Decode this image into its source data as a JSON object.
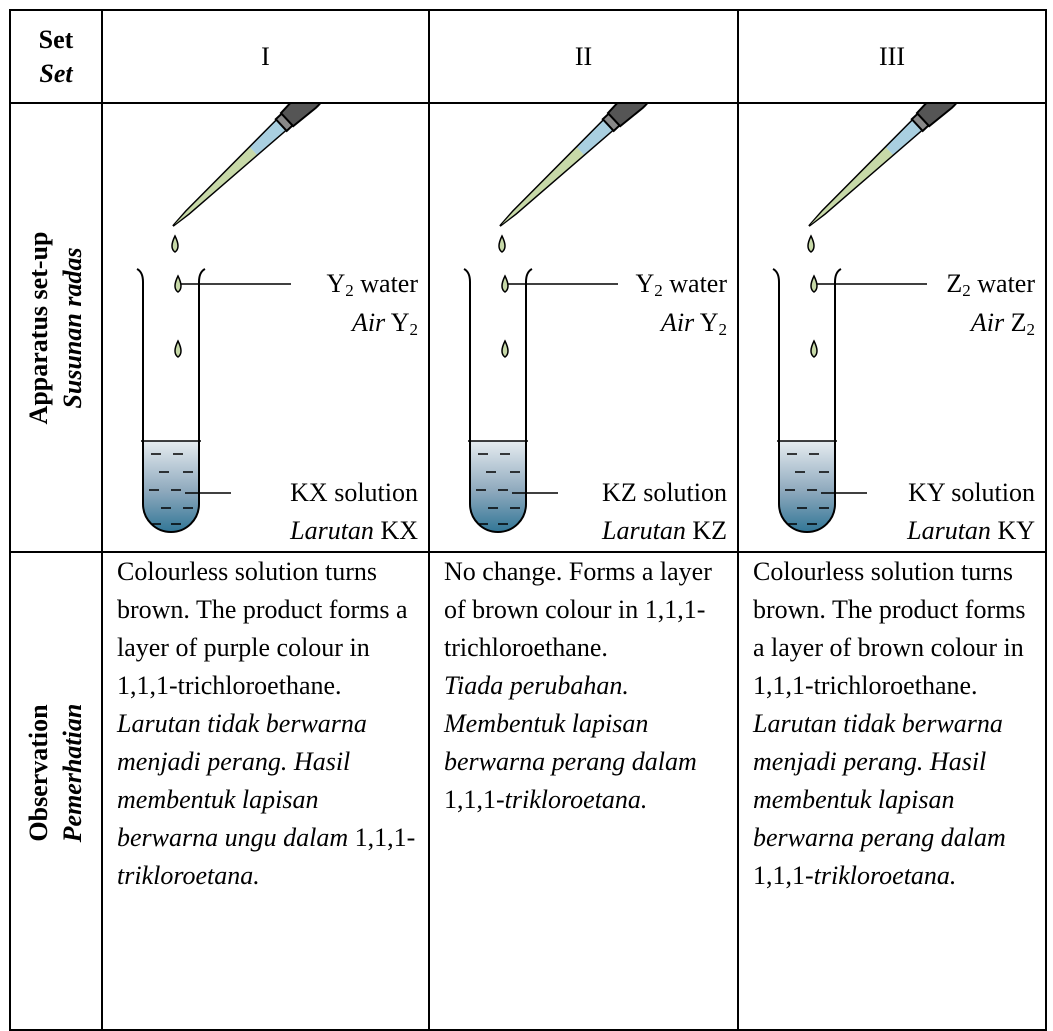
{
  "header": {
    "label": {
      "en": "Set",
      "ms": "Set"
    },
    "sets": [
      "I",
      "II",
      "III"
    ]
  },
  "apparatus": {
    "label": {
      "en": "Apparatus set-up",
      "ms": "Susunan radas"
    },
    "cells": [
      {
        "reagent": {
          "symbol": "Y",
          "subscript": "2",
          "en_suffix": "water",
          "ms_prefix": "Air"
        },
        "solution": {
          "en": "KX solution",
          "ms_prefix": "Larutan",
          "ms_symbol": "KX"
        }
      },
      {
        "reagent": {
          "symbol": "Y",
          "subscript": "2",
          "en_suffix": "water",
          "ms_prefix": "Air"
        },
        "solution": {
          "en": "KZ solution",
          "ms_prefix": "Larutan",
          "ms_symbol": "KZ"
        }
      },
      {
        "reagent": {
          "symbol": "Z",
          "subscript": "2",
          "en_suffix": "water",
          "ms_prefix": "Air"
        },
        "solution": {
          "en": "KY solution",
          "ms_prefix": "Larutan",
          "ms_symbol": "KY"
        }
      }
    ]
  },
  "observation": {
    "label": {
      "en": "Observation",
      "ms": "Pemerhatian"
    },
    "cells": [
      {
        "en": "Colourless solution turns brown. The product forms a layer of purple colour in 1,1,1-trichloroethane.",
        "ms": [
          {
            "text": "Larutan tidak berwarna menjadi perang. Hasil membentuk lapisan berwarna ungu dalam ",
            "italic": true
          },
          {
            "text": "1,1,1-",
            "italic": false
          },
          {
            "text": "trikloroetana.",
            "italic": true
          }
        ]
      },
      {
        "en": "No change. Forms a layer of brown colour in 1,1,1-trichloroethane.",
        "ms": [
          {
            "text": "Tiada perubahan. Membentuk lapisan berwarna perang dalam ",
            "italic": true
          },
          {
            "text": "1,1,1-",
            "italic": false
          },
          {
            "text": "trikloroetana.",
            "italic": true
          }
        ]
      },
      {
        "en": "Colourless solution turns brown. The product forms a layer of brown colour in 1,1,1-trichloroethane.",
        "ms": [
          {
            "text": "Larutan tidak berwarna menjadi perang. Hasil membentuk lapisan berwarna perang dalam ",
            "italic": true
          },
          {
            "text": "1,1,1-",
            "italic": false
          },
          {
            "text": "trikloroetana.",
            "italic": true
          }
        ]
      }
    ]
  }
}
